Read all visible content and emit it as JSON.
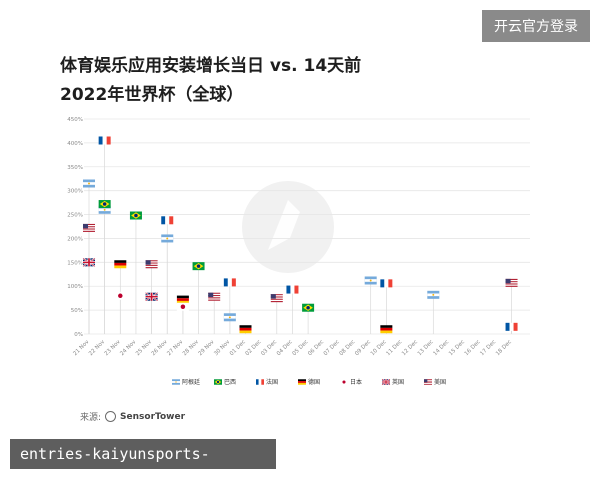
{
  "badge": {
    "label": "开云官方登录"
  },
  "title": {
    "line1": "体育娱乐应用安装增长当日 vs. 14天前",
    "line2": "2022年世界杯（全球）"
  },
  "source": {
    "prefix": "来源:",
    "brand_a": "Sensor",
    "brand_b": "Tower"
  },
  "url_bar": {
    "text": "entries-kaiyunsports-qq.com.cn"
  },
  "colors": {
    "grid": "#e6e6e6",
    "stem": "#d9d9d9",
    "axis_text": "#8a8a8a",
    "watermark": "#f1f1f1"
  },
  "chart_data": {
    "type": "scatter",
    "title": "",
    "xlabel": "",
    "ylabel": "",
    "ylim": [
      0,
      450
    ],
    "y_ticks": [
      "0%",
      "50%",
      "100%",
      "150%",
      "200%",
      "250%",
      "300%",
      "350%",
      "400%",
      "450%"
    ],
    "y_tick_values": [
      0,
      50,
      100,
      150,
      200,
      250,
      300,
      350,
      400,
      450
    ],
    "categories": [
      "21 Nov",
      "22 Nov",
      "23 Nov",
      "24 Nov",
      "25 Nov",
      "26 Nov",
      "27 Nov",
      "28 Nov",
      "29 Nov",
      "30 Nov",
      "01 Dec",
      "02 Dec",
      "03 Dec",
      "04 Dec",
      "05 Dec",
      "06 Dec",
      "07 Dec",
      "08 Dec",
      "09 Dec",
      "10 Dec",
      "11 Dec",
      "12 Dec",
      "13 Dec",
      "14 Dec",
      "15 Dec",
      "16 Dec",
      "17 Dec",
      "18 Dec"
    ],
    "legend": [
      {
        "country": "argentina",
        "label": "阿根廷"
      },
      {
        "country": "brazil",
        "label": "巴西"
      },
      {
        "country": "france",
        "label": "法国"
      },
      {
        "country": "germany",
        "label": "德国"
      },
      {
        "country": "japan",
        "label": "日本"
      },
      {
        "country": "uk",
        "label": "英国"
      },
      {
        "country": "usa",
        "label": "美国"
      }
    ],
    "series": [
      {
        "country": "argentina",
        "label": "阿根廷",
        "points": [
          [
            "21 Nov",
            315
          ],
          [
            "22 Nov",
            260
          ],
          [
            "26 Nov",
            200
          ],
          [
            "30 Nov",
            35
          ],
          [
            "09 Dec",
            112
          ],
          [
            "13 Dec",
            82
          ]
        ]
      },
      {
        "country": "brazil",
        "label": "巴西",
        "points": [
          [
            "22 Nov",
            272
          ],
          [
            "24 Nov",
            248
          ],
          [
            "28 Nov",
            142
          ],
          [
            "05 Dec",
            55
          ]
        ]
      },
      {
        "country": "france",
        "label": "法国",
        "points": [
          [
            "22 Nov",
            405
          ],
          [
            "26 Nov",
            238
          ],
          [
            "30 Nov",
            108
          ],
          [
            "04 Dec",
            93
          ],
          [
            "10 Dec",
            106
          ],
          [
            "18 Dec",
            15
          ]
        ]
      },
      {
        "country": "germany",
        "label": "德国",
        "points": [
          [
            "23 Nov",
            146
          ],
          [
            "27 Nov",
            72
          ],
          [
            "01 Dec",
            10
          ],
          [
            "10 Dec",
            10
          ]
        ]
      },
      {
        "country": "japan",
        "label": "日本",
        "points": [
          [
            "23 Nov",
            80
          ],
          [
            "27 Nov",
            57
          ]
        ]
      },
      {
        "country": "uk",
        "label": "英国",
        "points": [
          [
            "21 Nov",
            150
          ],
          [
            "25 Nov",
            78
          ]
        ]
      },
      {
        "country": "usa",
        "label": "美国",
        "points": [
          [
            "21 Nov",
            222
          ],
          [
            "25 Nov",
            146
          ],
          [
            "29 Nov",
            78
          ],
          [
            "03 Dec",
            75
          ],
          [
            "18 Dec",
            107
          ]
        ]
      }
    ]
  }
}
